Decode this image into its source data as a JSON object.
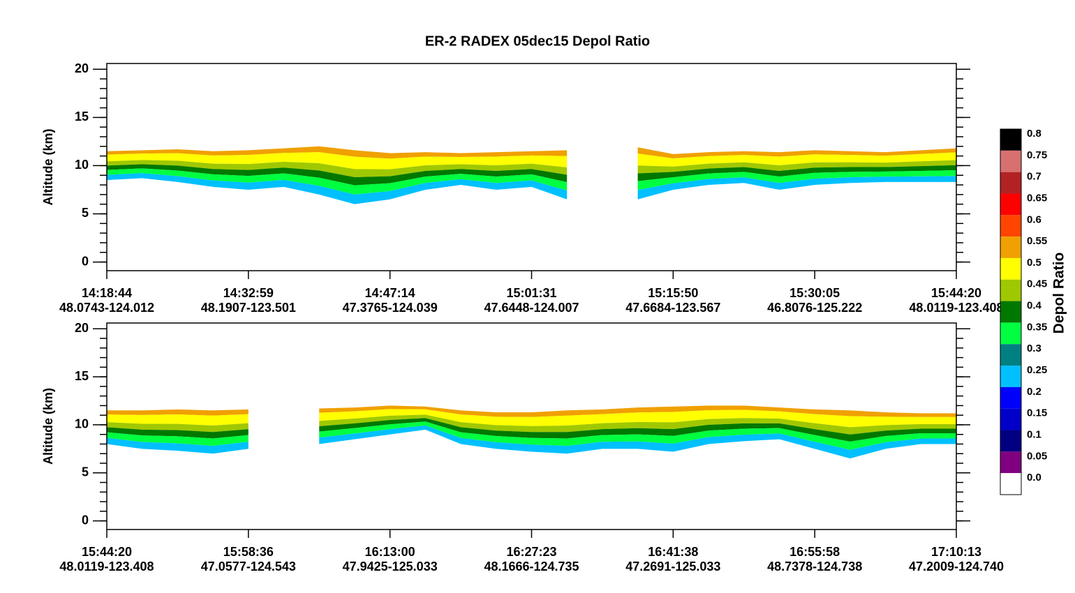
{
  "chart_data": [
    {
      "type": "curtain",
      "title": "ER-2 RADEX 05dec15 Depol Ratio",
      "ylabel": "Altitude (km)",
      "ylim": [
        -0.9,
        20.6
      ],
      "yticks": [
        0,
        5,
        10,
        15,
        20
      ],
      "yminor": [
        0,
        1,
        2,
        3,
        4,
        5,
        6,
        7,
        8,
        9,
        10,
        11,
        12,
        13,
        14,
        15,
        16,
        17,
        18,
        19,
        20
      ],
      "categories": [
        "14:18:44",
        "14:32:59",
        "14:47:14",
        "15:01:31",
        "15:15:50",
        "15:30:05",
        "15:44:20"
      ],
      "positions": [
        "48.0743-124.012",
        "48.1907-123.501",
        "47.3765-124.039",
        "47.6448-124.007",
        "47.6684-123.567",
        "46.8076-125.222",
        "48.0119-123.408"
      ],
      "cloud_top": [
        11.5,
        11.6,
        11.7,
        11.5,
        11.6,
        11.8,
        12,
        11.6,
        11.3,
        11.4,
        11.3,
        11.4,
        11.5,
        11.6,
        null,
        11.9,
        11.2,
        11.4,
        11.5,
        11.4,
        11.6,
        11.5,
        11.4,
        11.6,
        11.8
      ],
      "cloud_base": [
        8.5,
        8.7,
        8.3,
        7.8,
        7.5,
        7.8,
        7,
        6,
        6.5,
        7.5,
        8,
        7.5,
        7.8,
        6.5,
        null,
        6.5,
        7.5,
        8,
        8.2,
        7.5,
        8,
        8.2,
        8.3,
        8.3,
        8.3
      ],
      "colorbar": {
        "label": "Depol Ratio",
        "levels": [
          0.8,
          0.75,
          0.7,
          0.65,
          0.6,
          0.55,
          0.5,
          0.45,
          0.4,
          0.35,
          0.3,
          0.25,
          0.2,
          0.15,
          0.1,
          0.05,
          {
            "value": 0,
            "label": "0.0"
          }
        ],
        "colors": [
          "#000000",
          "#d87070",
          "#b22222",
          "#ff0000",
          "#ff4500",
          "#f0a000",
          "#ffff00",
          "#a0c800",
          "#007800",
          "#00ff40",
          "#008080",
          "#00c0ff",
          "#0000ff",
          "#0000c8",
          "#000080",
          "#800080",
          "#ffffff"
        ]
      }
    },
    {
      "type": "curtain",
      "ylabel": "Altitude (km)",
      "ylim": [
        -0.9,
        20.6
      ],
      "yticks": [
        0,
        5,
        10,
        15,
        20
      ],
      "yminor": [
        0,
        1,
        2,
        3,
        4,
        5,
        6,
        7,
        8,
        9,
        10,
        11,
        12,
        13,
        14,
        15,
        16,
        17,
        18,
        19,
        20
      ],
      "categories": [
        "15:44:20",
        "15:58:36",
        "16:13:00",
        "16:27:23",
        "16:41:38",
        "16:55:58",
        "17:10:13"
      ],
      "positions": [
        "48.0119-123.408",
        "47.0577-124.543",
        "47.9425-125.033",
        "48.1666-124.735",
        "47.2691-125.033",
        "48.7378-124.738",
        "47.2009-124.740"
      ],
      "cloud_top": [
        11.5,
        11.5,
        11.6,
        11.5,
        11.6,
        null,
        11.7,
        11.8,
        12,
        11.9,
        11.5,
        11.3,
        11.3,
        11.5,
        11.6,
        11.8,
        11.9,
        12,
        12,
        11.8,
        11.6,
        11.5,
        11.3,
        11.2,
        11.2
      ],
      "cloud_base": [
        8,
        7.5,
        7.3,
        7,
        7.5,
        null,
        8,
        8.5,
        9,
        9.5,
        8,
        7.5,
        7.2,
        7,
        7.5,
        7.5,
        7.2,
        8,
        8.3,
        8.5,
        7.5,
        6.5,
        7.5,
        8,
        8
      ]
    }
  ]
}
